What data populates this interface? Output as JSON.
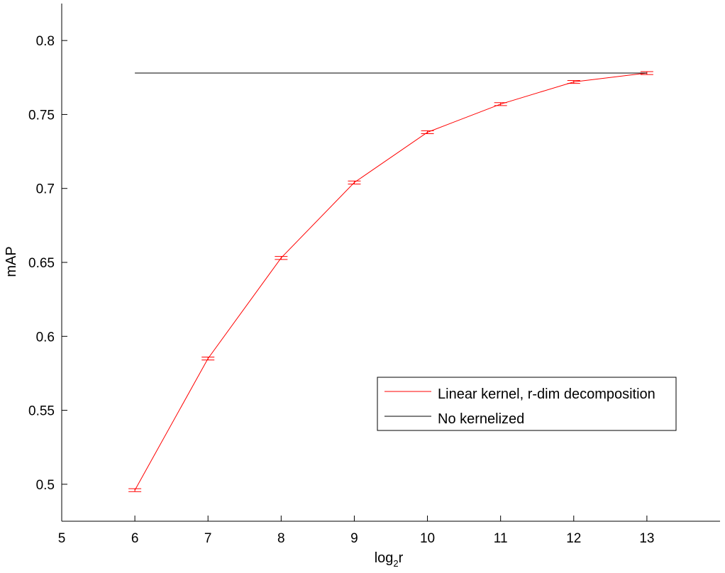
{
  "chart_data": {
    "type": "line",
    "xlabel": "log",
    "xlabel_subscript": "2",
    "xlabel_suffix": "r",
    "ylabel": "mAP",
    "xlim": [
      5,
      14
    ],
    "ylim": [
      0.475,
      0.825
    ],
    "xticks": [
      5,
      6,
      7,
      8,
      9,
      10,
      11,
      12,
      13
    ],
    "yticks": [
      0.5,
      0.55,
      0.6,
      0.65,
      0.7,
      0.75,
      0.8
    ],
    "ytick_labels": [
      "0.5",
      "0.55",
      "0.6",
      "0.65",
      "0.7",
      "0.75",
      "0.8"
    ],
    "grid": false,
    "legend_position": "lower-right",
    "series": [
      {
        "name": "Linear kernel, r-dim decomposition",
        "color": "#ff0000",
        "x": [
          6,
          7,
          8,
          9,
          10,
          11,
          12,
          13
        ],
        "values": [
          0.496,
          0.585,
          0.653,
          0.704,
          0.738,
          0.757,
          0.772,
          0.778
        ],
        "error": [
          0.001,
          0.001,
          0.001,
          0.001,
          0.001,
          0.001,
          0.001,
          0.001
        ]
      },
      {
        "name": "No kernelized",
        "color": "#000000",
        "x": [
          6,
          13
        ],
        "values": [
          0.778,
          0.778
        ]
      }
    ]
  }
}
